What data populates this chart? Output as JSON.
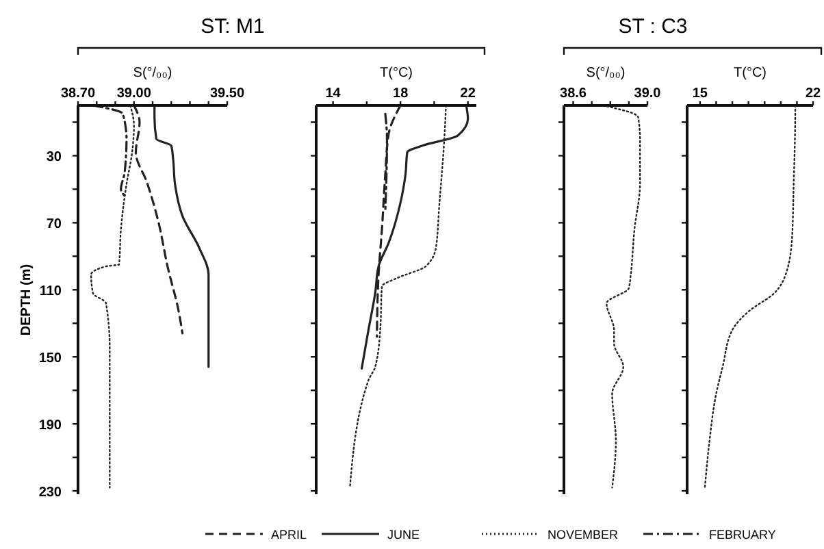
{
  "chart_data": [
    {
      "type": "line",
      "title": "ST: M1",
      "xlabel": "S(°/₀₀)",
      "ylabel": "DEPTH (m)",
      "legend": "bottom",
      "marker": "none",
      "xlim": [
        38.7,
        39.5
      ],
      "xticks": [
        {
          "value": 38.7,
          "label": "38.70"
        },
        {
          "value": 38.8,
          "label": null
        },
        {
          "value": 38.9,
          "label": null
        },
        {
          "value": 39.0,
          "label": "39.00"
        },
        {
          "value": 39.1,
          "label": null
        },
        {
          "value": 39.2,
          "label": null
        },
        {
          "value": 39.3,
          "label": null
        },
        {
          "value": 39.4,
          "label": null
        },
        {
          "value": 39.5,
          "label": "39.50"
        }
      ],
      "ylim": [
        232,
        0
      ],
      "yticks": [
        {
          "value": 10,
          "label": null
        },
        30,
        {
          "value": 50,
          "label": null
        },
        70,
        {
          "value": 90,
          "label": null
        },
        110,
        {
          "value": 130,
          "label": null
        },
        150,
        {
          "value": 170,
          "label": null
        },
        190,
        {
          "value": 210,
          "label": null
        },
        230
      ],
      "series": [
        {
          "name": "APRIL",
          "color": "#222222",
          "line_style": "dashed",
          "x": [
            39.0,
            39.03,
            39.01,
            39.07,
            39.13,
            39.18,
            39.24,
            39.26
          ],
          "values": [
            0,
            10,
            28,
            46,
            69,
            96,
            123,
            136
          ]
        },
        {
          "name": "JUNE",
          "color": "#222222",
          "line_style": "solid",
          "x": [
            39.11,
            39.11,
            39.12,
            39.2,
            39.21,
            39.22,
            39.26,
            39.35,
            39.4,
            39.4,
            39.4
          ],
          "values": [
            0,
            7,
            20,
            24,
            32,
            47,
            66,
            85,
            101,
            128,
            156
          ]
        },
        {
          "name": "NOVEMBER",
          "color": "#222222",
          "line_style": "dotted",
          "x": [
            38.98,
            39.0,
            38.99,
            38.96,
            38.93,
            38.92,
            38.85,
            38.77,
            38.78,
            38.85,
            38.87,
            38.87,
            38.87
          ],
          "values": [
            0,
            12,
            28,
            47,
            74,
            95,
            96,
            101,
            112,
            118,
            145,
            175,
            228
          ]
        },
        {
          "name": "FEBRUARY",
          "color": "#222222",
          "line_style": "dashdot",
          "x": [
            38.78,
            38.94,
            38.96,
            38.95,
            38.93,
            38.96
          ],
          "values": [
            0,
            5,
            20,
            40,
            50,
            55
          ]
        }
      ]
    },
    {
      "type": "line",
      "xlabel": "T(°C)",
      "tick_labels": "x",
      "marker": "none",
      "xlim": [
        13,
        22.5
      ],
      "xticks": [
        14,
        {
          "value": 16,
          "label": null
        },
        18,
        {
          "value": 20,
          "label": null
        },
        22
      ],
      "ylim": [
        232,
        0
      ],
      "yticks": [
        {
          "value": 10,
          "label": null
        },
        {
          "value": 30,
          "label": null
        },
        {
          "value": 50,
          "label": null
        },
        {
          "value": 70,
          "label": null
        },
        {
          "value": 90,
          "label": null
        },
        {
          "value": 110,
          "label": null
        },
        {
          "value": 130,
          "label": null
        },
        {
          "value": 150,
          "label": null
        },
        {
          "value": 170,
          "label": null
        },
        {
          "value": 190,
          "label": null
        },
        {
          "value": 210,
          "label": null
        },
        {
          "value": 230,
          "label": null
        }
      ],
      "series": [
        {
          "name": "APRIL",
          "color": "#222222",
          "line_style": "dashed",
          "x": [
            18.0,
            17.3,
            17.1,
            16.9,
            16.7,
            16.6
          ],
          "values": [
            0,
            17,
            41,
            74,
            101,
            138
          ]
        },
        {
          "name": "JUNE",
          "color": "#222222",
          "line_style": "solid",
          "x": [
            21.9,
            22.0,
            21.4,
            19.3,
            18.4,
            18.3,
            18.0,
            17.3,
            16.7,
            16.5,
            16.1,
            15.7
          ],
          "values": [
            0,
            8,
            18,
            24,
            28,
            41,
            58,
            82,
            96,
            112,
            134,
            157
          ]
        },
        {
          "name": "NOVEMBER",
          "color": "#222222",
          "line_style": "dotted",
          "x": [
            20.7,
            20.6,
            20.3,
            20.1,
            19.5,
            17.8,
            16.9,
            16.8,
            16.5,
            16.1,
            15.0
          ],
          "values": [
            0,
            20,
            60,
            85,
            96,
            103,
            108,
            134,
            156,
            164,
            228
          ]
        },
        {
          "name": "FEBRUARY",
          "color": "#222222",
          "line_style": "dashdot",
          "x": [
            17.1,
            17.2,
            17.1
          ],
          "values": [
            5,
            20,
            63
          ]
        }
      ]
    },
    {
      "type": "line",
      "title": "ST : C3",
      "xlabel": "S(°/₀₀)",
      "tick_labels": "x",
      "marker": "none",
      "xlim": [
        38.55,
        39.0
      ],
      "xticks": [
        38.6,
        {
          "value": 38.7,
          "label": null
        },
        {
          "value": 38.8,
          "label": null
        },
        {
          "value": 38.9,
          "label": null
        },
        {
          "value": 39.0,
          "label": "39.0"
        }
      ],
      "ylim": [
        232,
        0
      ],
      "yticks": [
        {
          "value": 10,
          "label": null
        },
        {
          "value": 30,
          "label": null
        },
        {
          "value": 50,
          "label": null
        },
        {
          "value": 70,
          "label": null
        },
        {
          "value": 90,
          "label": null
        },
        {
          "value": 110,
          "label": null
        },
        {
          "value": 130,
          "label": null
        },
        {
          "value": 150,
          "label": null
        },
        {
          "value": 170,
          "label": null
        },
        {
          "value": 190,
          "label": null
        },
        {
          "value": 210,
          "label": null
        },
        {
          "value": 230,
          "label": null
        }
      ],
      "series": [
        {
          "name": "NOVEMBER",
          "color": "#222222",
          "line_style": "dotted",
          "x": [
            38.76,
            38.95,
            38.96,
            38.96,
            38.93,
            38.91,
            38.9,
            38.78,
            38.82,
            38.82,
            38.87,
            38.81,
            38.83,
            38.81
          ],
          "values": [
            0,
            7,
            20,
            47,
            74,
            101,
            109,
            118,
            134,
            142,
            156,
            172,
            200,
            228
          ]
        }
      ]
    },
    {
      "type": "line",
      "xlabel": "T(°C)",
      "tick_labels": "x",
      "marker": "none",
      "xlim": [
        14.2,
        22
      ],
      "xticks": [
        15,
        {
          "value": 16,
          "label": null
        },
        {
          "value": 17,
          "label": null
        },
        {
          "value": 18,
          "label": null
        },
        {
          "value": 19,
          "label": null
        },
        {
          "value": 20,
          "label": null
        },
        {
          "value": 21,
          "label": null
        },
        22
      ],
      "ylim": [
        232,
        0
      ],
      "yticks": [
        {
          "value": 10,
          "label": null
        },
        {
          "value": 30,
          "label": null
        },
        {
          "value": 50,
          "label": null
        },
        {
          "value": 70,
          "label": null
        },
        {
          "value": 90,
          "label": null
        },
        {
          "value": 110,
          "label": null
        },
        {
          "value": 130,
          "label": null
        },
        {
          "value": 150,
          "label": null
        },
        {
          "value": 170,
          "label": null
        },
        {
          "value": 190,
          "label": null
        },
        {
          "value": 210,
          "label": null
        },
        {
          "value": 230,
          "label": null
        }
      ],
      "series": [
        {
          "name": "NOVEMBER",
          "color": "#222222",
          "line_style": "dotted",
          "x": [
            20.9,
            20.9,
            20.8,
            20.7,
            20.3,
            19.6,
            18.0,
            17.0,
            16.4,
            16.0,
            15.6,
            15.3
          ],
          "values": [
            0,
            3,
            47,
            79,
            101,
            112,
            123,
            134,
            156,
            172,
            199,
            228
          ]
        }
      ]
    }
  ]
}
